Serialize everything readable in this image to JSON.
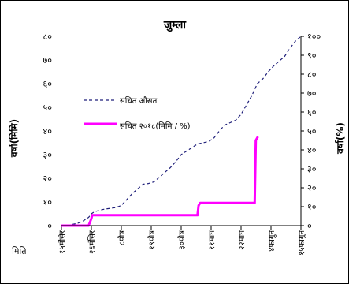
{
  "chart_data": {
    "type": "line",
    "title": "जुम्ला",
    "ylabel_left": "वर्षा(मिमि)",
    "ylabel_right": "वर्षा(%)",
    "xlabel": "मिति",
    "y_left_ticks": [
      "०",
      "१०",
      "२०",
      "३०",
      "४०",
      "५०",
      "६०",
      "७०",
      "८०"
    ],
    "y_right_ticks": [
      "०",
      "१०",
      "२०",
      "३०",
      "४०",
      "५०",
      "६०",
      "७०",
      "८०",
      "९०",
      "१००"
    ],
    "ylim_left": [
      0,
      80
    ],
    "ylim_right": [
      0,
      100
    ],
    "x_tick_labels": [
      "१५मंसिर",
      "२६मंसिर",
      "८पौष",
      "१९पौष",
      "३०पौष",
      "११माघ",
      "२२माघ",
      "४फागुन",
      "१५फागुन"
    ],
    "x_tick_days": [
      0,
      11,
      22,
      33,
      44,
      55,
      66,
      77,
      88
    ],
    "xlim": [
      0,
      88
    ],
    "legend_position": "center-left",
    "series": [
      {
        "name": "संचित औसत",
        "style": "dashed",
        "color": "#1f1f7a",
        "x": [
          0,
          2,
          4,
          6,
          8,
          10,
          11,
          12,
          14,
          16,
          18,
          20,
          22,
          24,
          26,
          28,
          30,
          32,
          34,
          36,
          38,
          40,
          42,
          44,
          46,
          48,
          50,
          52,
          54,
          56,
          58,
          60,
          62,
          64,
          66,
          68,
          70,
          72,
          74,
          76,
          78,
          80,
          82,
          84,
          86,
          88
        ],
        "y": [
          0,
          0,
          0.5,
          1,
          2,
          3.5,
          5,
          5.8,
          6.5,
          7,
          7.3,
          7.6,
          8.5,
          11,
          13.5,
          15.5,
          17.5,
          17.8,
          18.5,
          20.5,
          22.5,
          24.5,
          27,
          30,
          31.5,
          33,
          34.5,
          35,
          35.5,
          37,
          40,
          42.5,
          43.5,
          44.5,
          47,
          51,
          55,
          60,
          62,
          65,
          67.5,
          69.5,
          71.5,
          75,
          78,
          80
        ]
      },
      {
        "name": "संचित २०१८(मिमि / %)",
        "style": "solid",
        "color": "#ff00ff",
        "x": [
          0,
          10,
          11,
          11.3,
          50,
          50.4,
          51,
          71,
          71.4,
          72.2
        ],
        "y": [
          0,
          0,
          3,
          4.4,
          4.4,
          8.5,
          9.6,
          9.6,
          36,
          37.6
        ]
      }
    ]
  }
}
